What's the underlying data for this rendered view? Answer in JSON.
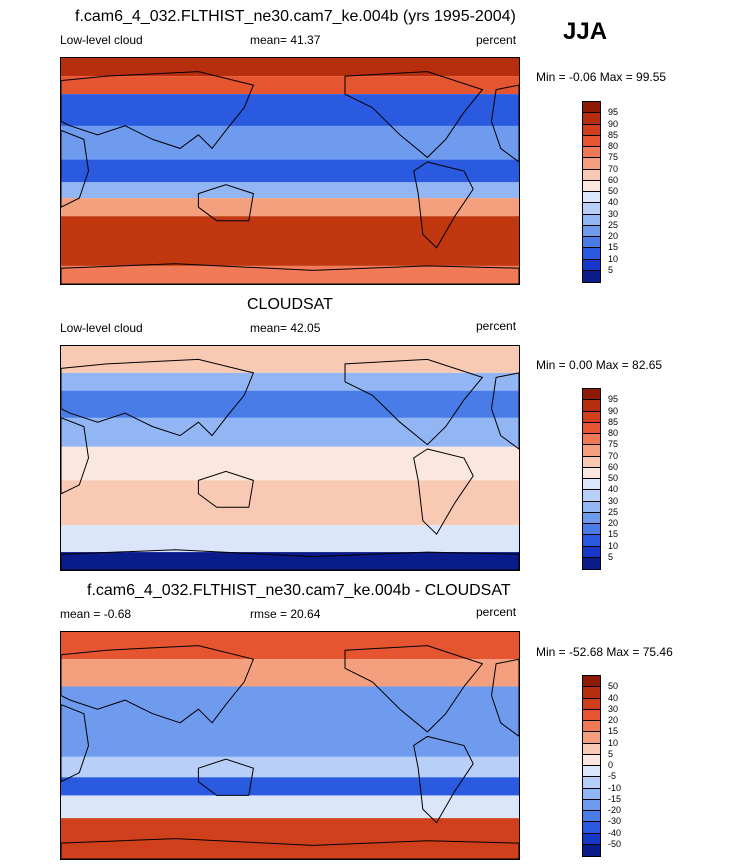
{
  "season": "JJA",
  "colors": {
    "abs": [
      "#0a1b8a",
      "#1637c8",
      "#2a5ae0",
      "#4a7ce8",
      "#6f9bef",
      "#92b6f4",
      "#b8cff7",
      "#dbe6fb",
      "#fbe7de",
      "#f8c9b3",
      "#f4a07f",
      "#ef7a55",
      "#e5552f",
      "#d1401c",
      "#b62e0e",
      "#8c1a05"
    ],
    "diff": [
      "#0a1b8a",
      "#1637c8",
      "#2a5ae0",
      "#4a7ce8",
      "#6f9bef",
      "#92b6f4",
      "#b8cff7",
      "#dbe6fb",
      "#fbe7de",
      "#f8c9b3",
      "#f4a07f",
      "#ef7a55",
      "#e5552f",
      "#d1401c",
      "#b62e0e",
      "#8c1a05"
    ]
  },
  "panels": [
    {
      "title": "f.cam6_4_032.FLTHIST_ne30.cam7_ke.004b (yrs 1995-2004)",
      "left": "Low-level cloud",
      "center": "mean=  41.37",
      "right": "percent",
      "minmax": "Min =  -0.06 Max =  99.55",
      "variant": "model",
      "colorbar_labels": [
        "95",
        "90",
        "85",
        "80",
        "75",
        "70",
        "60",
        "50",
        "40",
        "30",
        "25",
        "20",
        "15",
        "10",
        "5"
      ]
    },
    {
      "title": "CLOUDSAT",
      "left": "Low-level cloud",
      "center": "mean=  42.05",
      "right": "percent",
      "minmax": "Min =   0.00 Max =  82.65",
      "variant": "obs",
      "colorbar_labels": [
        "95",
        "90",
        "85",
        "80",
        "75",
        "70",
        "60",
        "50",
        "40",
        "30",
        "25",
        "20",
        "15",
        "10",
        "5"
      ]
    },
    {
      "title": "f.cam6_4_032.FLTHIST_ne30.cam7_ke.004b - CLOUDSAT",
      "left": "mean =  -0.68",
      "center": "rmse =  20.64",
      "right": "percent",
      "minmax": "Min = -52.68 Max =  75.46",
      "variant": "diff",
      "colorbar_labels": [
        "50",
        "40",
        "30",
        "20",
        "15",
        "10",
        "5",
        "0",
        "-5",
        "-10",
        "-15",
        "-20",
        "-30",
        "-40",
        "-50"
      ]
    }
  ]
}
